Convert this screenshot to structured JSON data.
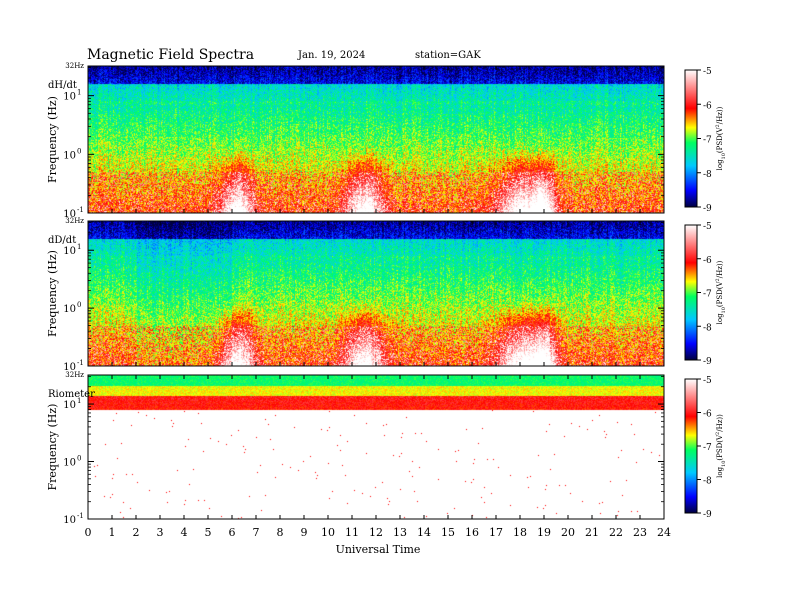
{
  "header": {
    "title": "Magnetic  Field  Spectra",
    "date": "Jan. 19, 2024",
    "station": "station=GAK"
  },
  "chart_data": {
    "type": "heatmap",
    "xlabel": "Universal Time",
    "x_ticks": [
      "0",
      "1",
      "2",
      "3",
      "4",
      "5",
      "6",
      "7",
      "8",
      "9",
      "10",
      "11",
      "12",
      "13",
      "14",
      "15",
      "16",
      "17",
      "18",
      "19",
      "20",
      "21",
      "22",
      "23",
      "24"
    ],
    "xlim": [
      0,
      24
    ],
    "y_top_label": "32Hz",
    "y_ticks": [
      {
        "exp": "-1",
        "value": 0.1
      },
      {
        "exp": "0",
        "value": 1
      },
      {
        "exp": "1",
        "value": 10
      }
    ],
    "y_scale": "log",
    "colorbar": {
      "ticks": [
        "-5",
        "-6",
        "-7",
        "-8",
        "-9"
      ],
      "label_prefix": "log",
      "label_sub": "10",
      "label_suffix": "(PSD(V",
      "label_sup": "2",
      "label_end": "/Hz))",
      "range": [
        -9,
        -5
      ],
      "colors": [
        "#000040",
        "#0000ff",
        "#00ffff",
        "#00ff00",
        "#ffff00",
        "#ff0000",
        "#ffffff"
      ]
    },
    "panels": [
      {
        "name": "dH/dt",
        "ylabel": "Frequency  (Hz)"
      },
      {
        "name": "dD/dt",
        "ylabel": "Frequency  (Hz)"
      },
      {
        "name": "Riometer",
        "ylabel": "Frequency  (Hz)"
      }
    ]
  }
}
